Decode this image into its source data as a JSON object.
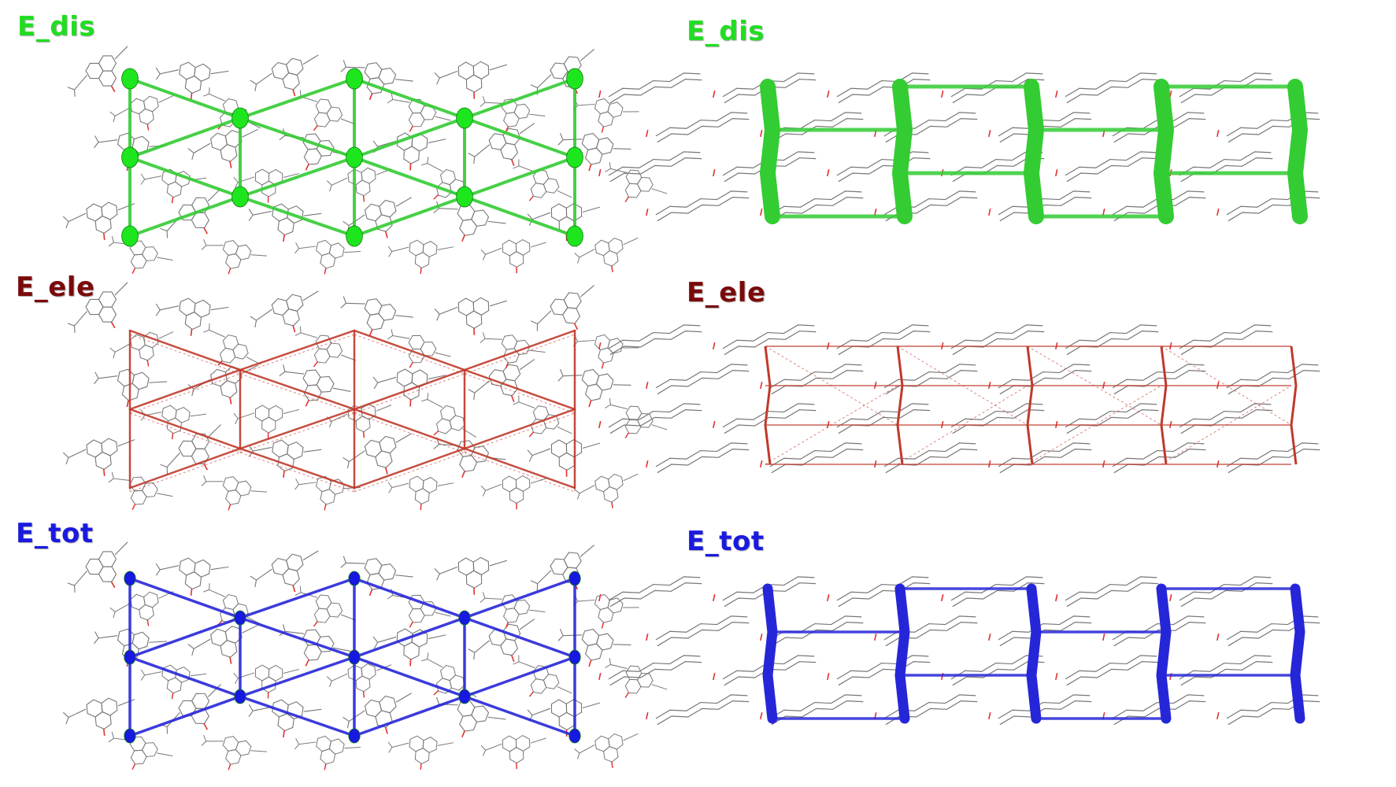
{
  "panels": [
    {
      "label": "E_dis",
      "color": "#22dd22",
      "view": "left"
    },
    {
      "label": "E_dis",
      "color": "#22dd22",
      "view": "right"
    },
    {
      "label": "E_ele",
      "color": "#7a0a0a",
      "view": "left"
    },
    {
      "label": "E_ele",
      "color": "#7a0a0a",
      "view": "right"
    },
    {
      "label": "E_tot",
      "color": "#1a1adf",
      "view": "left"
    },
    {
      "label": "E_tot",
      "color": "#1a1adf",
      "view": "right"
    }
  ],
  "colors": {
    "dis_line": "#33cc33",
    "dis_node": "#1ee61e",
    "ele_line": "#c0392b",
    "tot_line": "#2626d9",
    "tot_node": "#1818e0",
    "molecule": "#777777",
    "oxygen": "#e03030"
  }
}
